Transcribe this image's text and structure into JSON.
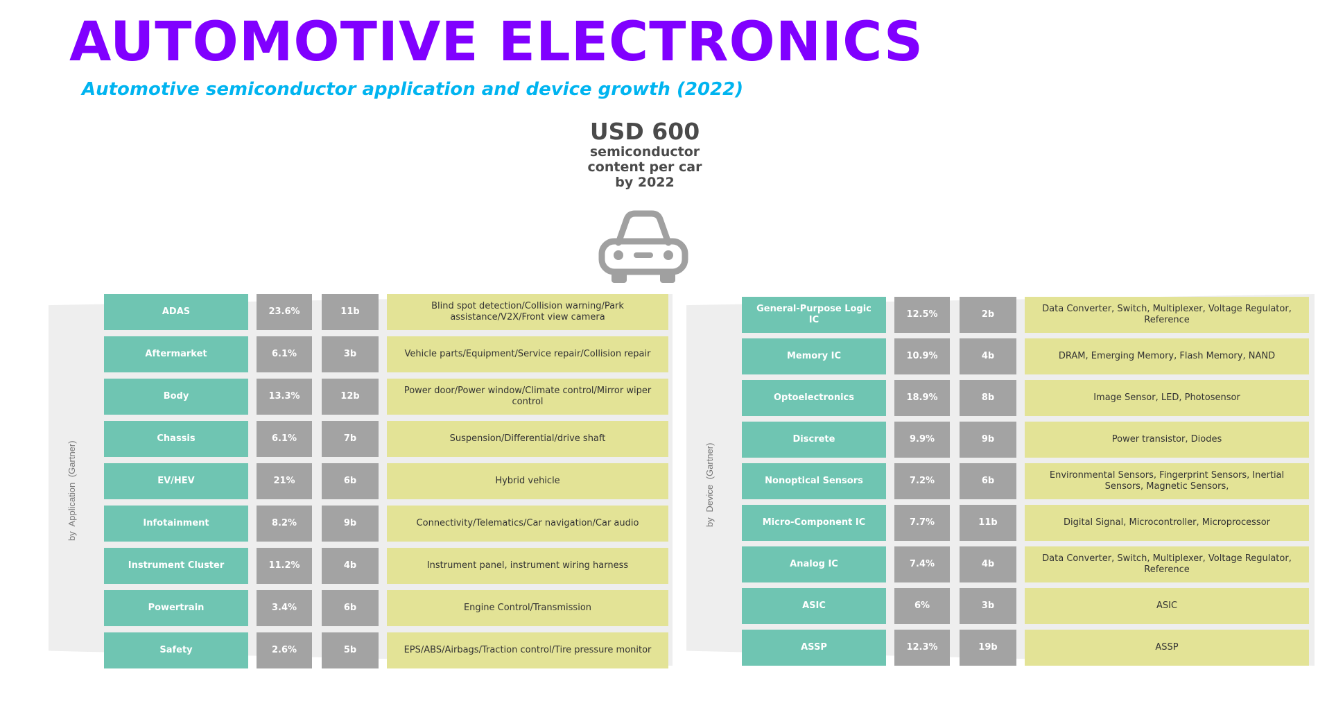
{
  "header": {
    "title": "AUTOMOTIVE ELECTRONICS",
    "subtitle": "Automotive semiconductor application and device growth (2022)"
  },
  "hero": {
    "amount": "USD 600",
    "line1": "semiconductor",
    "line2": "content per car",
    "line3": "by 2022",
    "icon": "car-icon"
  },
  "colors": {
    "title": "#8000ff",
    "subtitle": "#00b4f0",
    "name_cell": "#6fc5b2",
    "value_cell": "#a3a3a3",
    "desc_cell": "#e3e396",
    "panel": "#eeeeee"
  },
  "application": {
    "label": "by Application (Gartner)",
    "rows": [
      {
        "name": "ADAS",
        "pct": "23.6%",
        "count": "11b",
        "desc": "Blind spot detection/Collision warning/Park assistance/V2X/Front view camera"
      },
      {
        "name": "Aftermarket",
        "pct": "6.1%",
        "count": "3b",
        "desc": "Vehicle parts/Equipment/Service repair/Collision repair"
      },
      {
        "name": "Body",
        "pct": "13.3%",
        "count": "12b",
        "desc": "Power door/Power window/Climate control/Mirror wiper control"
      },
      {
        "name": "Chassis",
        "pct": "6.1%",
        "count": "7b",
        "desc": "Suspension/Differential/drive shaft"
      },
      {
        "name": "EV/HEV",
        "pct": "21%",
        "count": "6b",
        "desc": "Hybrid vehicle"
      },
      {
        "name": "Infotainment",
        "pct": "8.2%",
        "count": "9b",
        "desc": "Connectivity/Telematics/Car navigation/Car audio"
      },
      {
        "name": "Instrument Cluster",
        "pct": "11.2%",
        "count": "4b",
        "desc": "Instrument panel, instrument wiring harness"
      },
      {
        "name": "Powertrain",
        "pct": "3.4%",
        "count": "6b",
        "desc": "Engine Control/Transmission"
      },
      {
        "name": "Safety",
        "pct": "2.6%",
        "count": "5b",
        "desc": "EPS/ABS/Airbags/Traction control/Tire pressure monitor"
      }
    ]
  },
  "device": {
    "label": "by Device (Gartner)",
    "rows": [
      {
        "name": "General-Purpose Logic IC",
        "pct": "12.5%",
        "count": "2b",
        "desc": "Data Converter, Switch, Multiplexer, Voltage Regulator, Reference"
      },
      {
        "name": "Memory IC",
        "pct": "10.9%",
        "count": "4b",
        "desc": "DRAM, Emerging Memory, Flash Memory, NAND"
      },
      {
        "name": "Optoelectronics",
        "pct": "18.9%",
        "count": "8b",
        "desc": "Image Sensor, LED, Photosensor"
      },
      {
        "name": "Discrete",
        "pct": "9.9%",
        "count": "9b",
        "desc": "Power transistor, Diodes"
      },
      {
        "name": "Nonoptical Sensors",
        "pct": "7.2%",
        "count": "6b",
        "desc": "Environmental Sensors, Fingerprint Sensors, Inertial Sensors, Magnetic Sensors,"
      },
      {
        "name": "Micro-Component IC",
        "pct": "7.7%",
        "count": "11b",
        "desc": "Digital Signal, Microcontroller, Microprocessor"
      },
      {
        "name": "Analog IC",
        "pct": "7.4%",
        "count": "4b",
        "desc": "Data Converter, Switch, Multiplexer, Voltage Regulator, Reference"
      },
      {
        "name": "ASIC",
        "pct": "6%",
        "count": "3b",
        "desc": "ASIC"
      },
      {
        "name": "ASSP",
        "pct": "12.3%",
        "count": "19b",
        "desc": "ASSP"
      }
    ]
  }
}
